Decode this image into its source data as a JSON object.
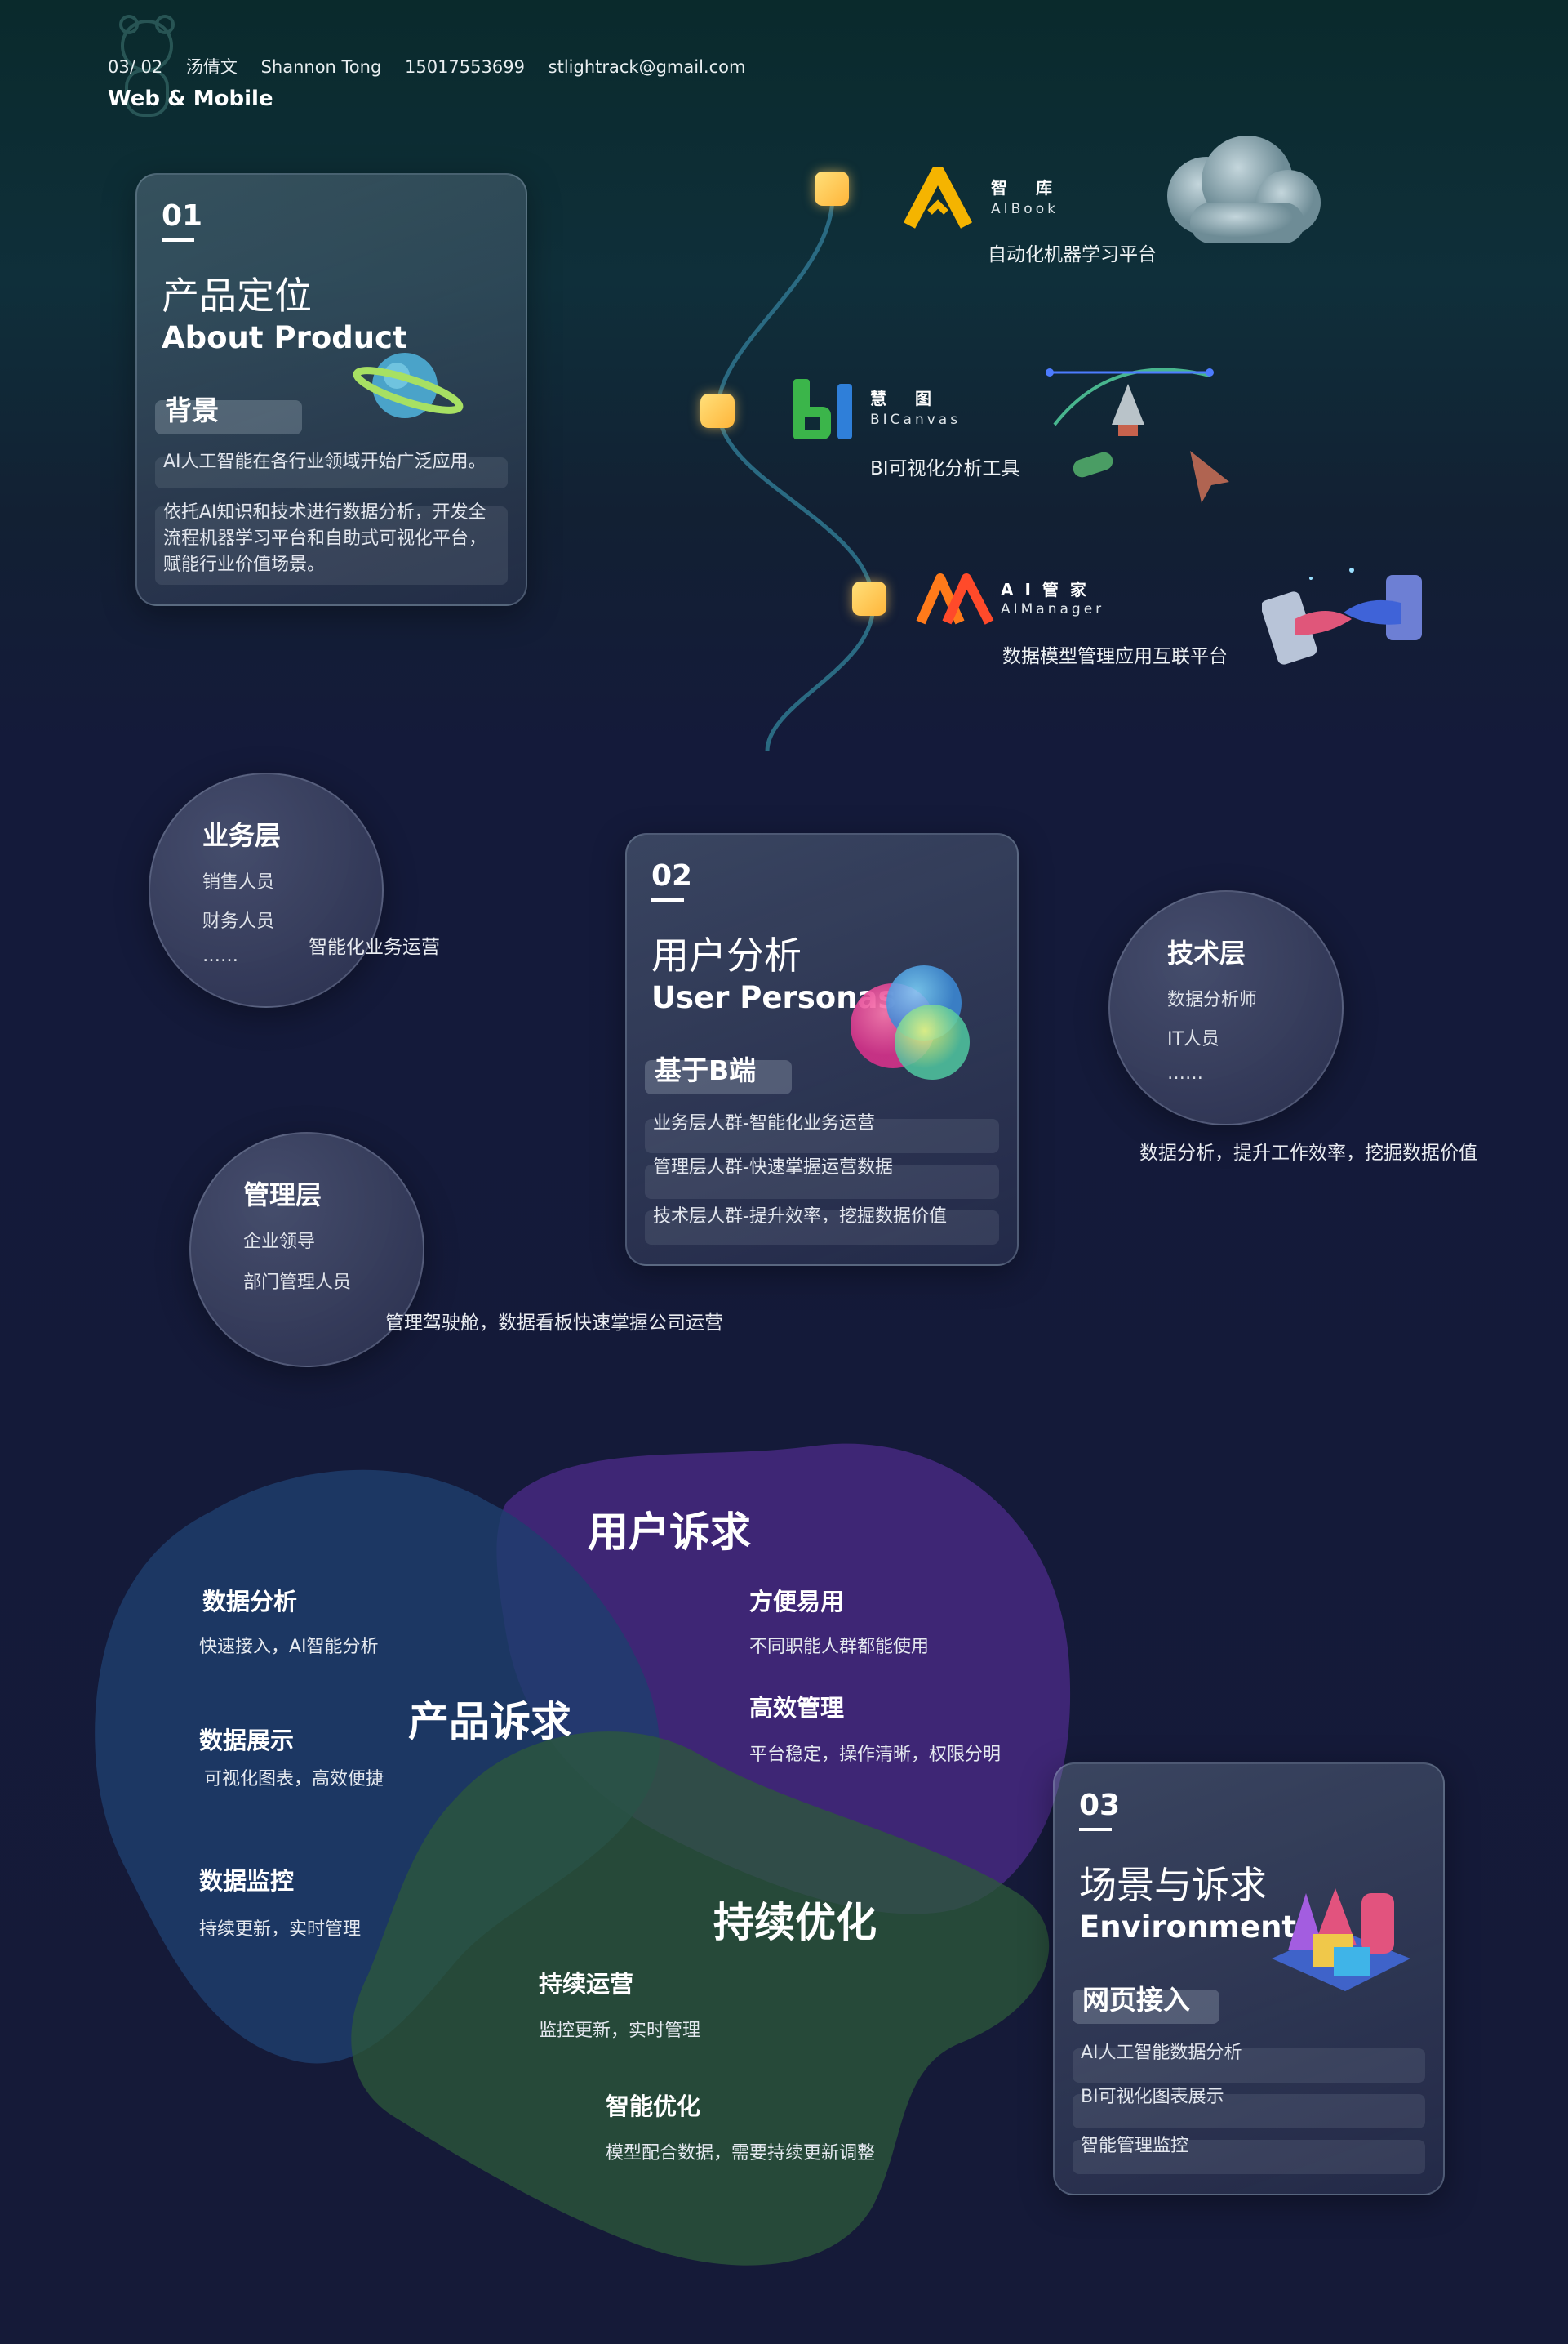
{
  "header": {
    "page": "03/ 02",
    "name_zh": "汤倩文",
    "name_en": "Shannon Tong",
    "phone": "15017553699",
    "email": "stlightrack@gmail.com",
    "subtitle": "Web & Mobile"
  },
  "section1": {
    "num": "01",
    "title_zh": "产品定位",
    "title_en": "About Product",
    "tag": "背景",
    "line1": "AI人工智能在各行业领域开始广泛应用。",
    "line2": "依托AI知识和技术进行数据分析，开发全流程机器学习平台和自助式可视化平台，赋能行业价值场景。"
  },
  "products": [
    {
      "name": "智 库",
      "en": "AIBook",
      "desc": "自动化机器学习平台",
      "color": "#f5b400"
    },
    {
      "name": "慧 图",
      "en": "BICanvas",
      "desc": "BI可视化分析工具",
      "color": "#3bb54a"
    },
    {
      "name": "AI管家",
      "en": "AIManager",
      "desc": "数据模型管理应用互联平台",
      "color": "#ff7a1a"
    }
  ],
  "section2": {
    "num": "02",
    "title_zh": "用户分析",
    "title_en": "User Personas",
    "tag": "基于B端",
    "rows": [
      "业务层人群-智能化业务运营",
      "管理层人群-快速掌握运营数据",
      "技术层人群-提升效率，挖掘数据价值"
    ]
  },
  "personas": {
    "business": {
      "title": "业务层",
      "items": [
        "销售人员",
        "财务人员",
        "……"
      ],
      "caption": "智能化业务运营"
    },
    "tech": {
      "title": "技术层",
      "items": [
        "数据分析师",
        "IT人员",
        "……"
      ],
      "caption": "数据分析，提升工作效率，挖掘数据价值"
    },
    "mgmt": {
      "title": "管理层",
      "items": [
        "企业领导",
        "部门管理人员"
      ],
      "caption": "管理驾驶舱，数据看板快速掌握公司运营"
    }
  },
  "needs": {
    "product": {
      "heading": "产品诉求",
      "items": [
        {
          "title": "数据分析",
          "desc": "快速接入，AI智能分析"
        },
        {
          "title": "数据展示",
          "desc": "可视化图表，高效便捷"
        },
        {
          "title": "数据监控",
          "desc": "持续更新，实时管理"
        }
      ]
    },
    "user": {
      "heading": "用户诉求",
      "items": [
        {
          "title": "方便易用",
          "desc": "不同职能人群都能使用"
        },
        {
          "title": "高效管理",
          "desc": "平台稳定，操作清晰，权限分明"
        }
      ]
    },
    "optimize": {
      "heading": "持续优化",
      "items": [
        {
          "title": "持续运营",
          "desc": "监控更新，实时管理"
        },
        {
          "title": "智能优化",
          "desc": "模型配合数据，需要持续更新调整"
        }
      ]
    }
  },
  "section3": {
    "num": "03",
    "title_zh": "场景与诉求",
    "title_en": "Environment",
    "tag": "网页接入",
    "rows": [
      "AI人工智能数据分析",
      "BI可视化图表展示",
      "智能管理监控"
    ]
  }
}
